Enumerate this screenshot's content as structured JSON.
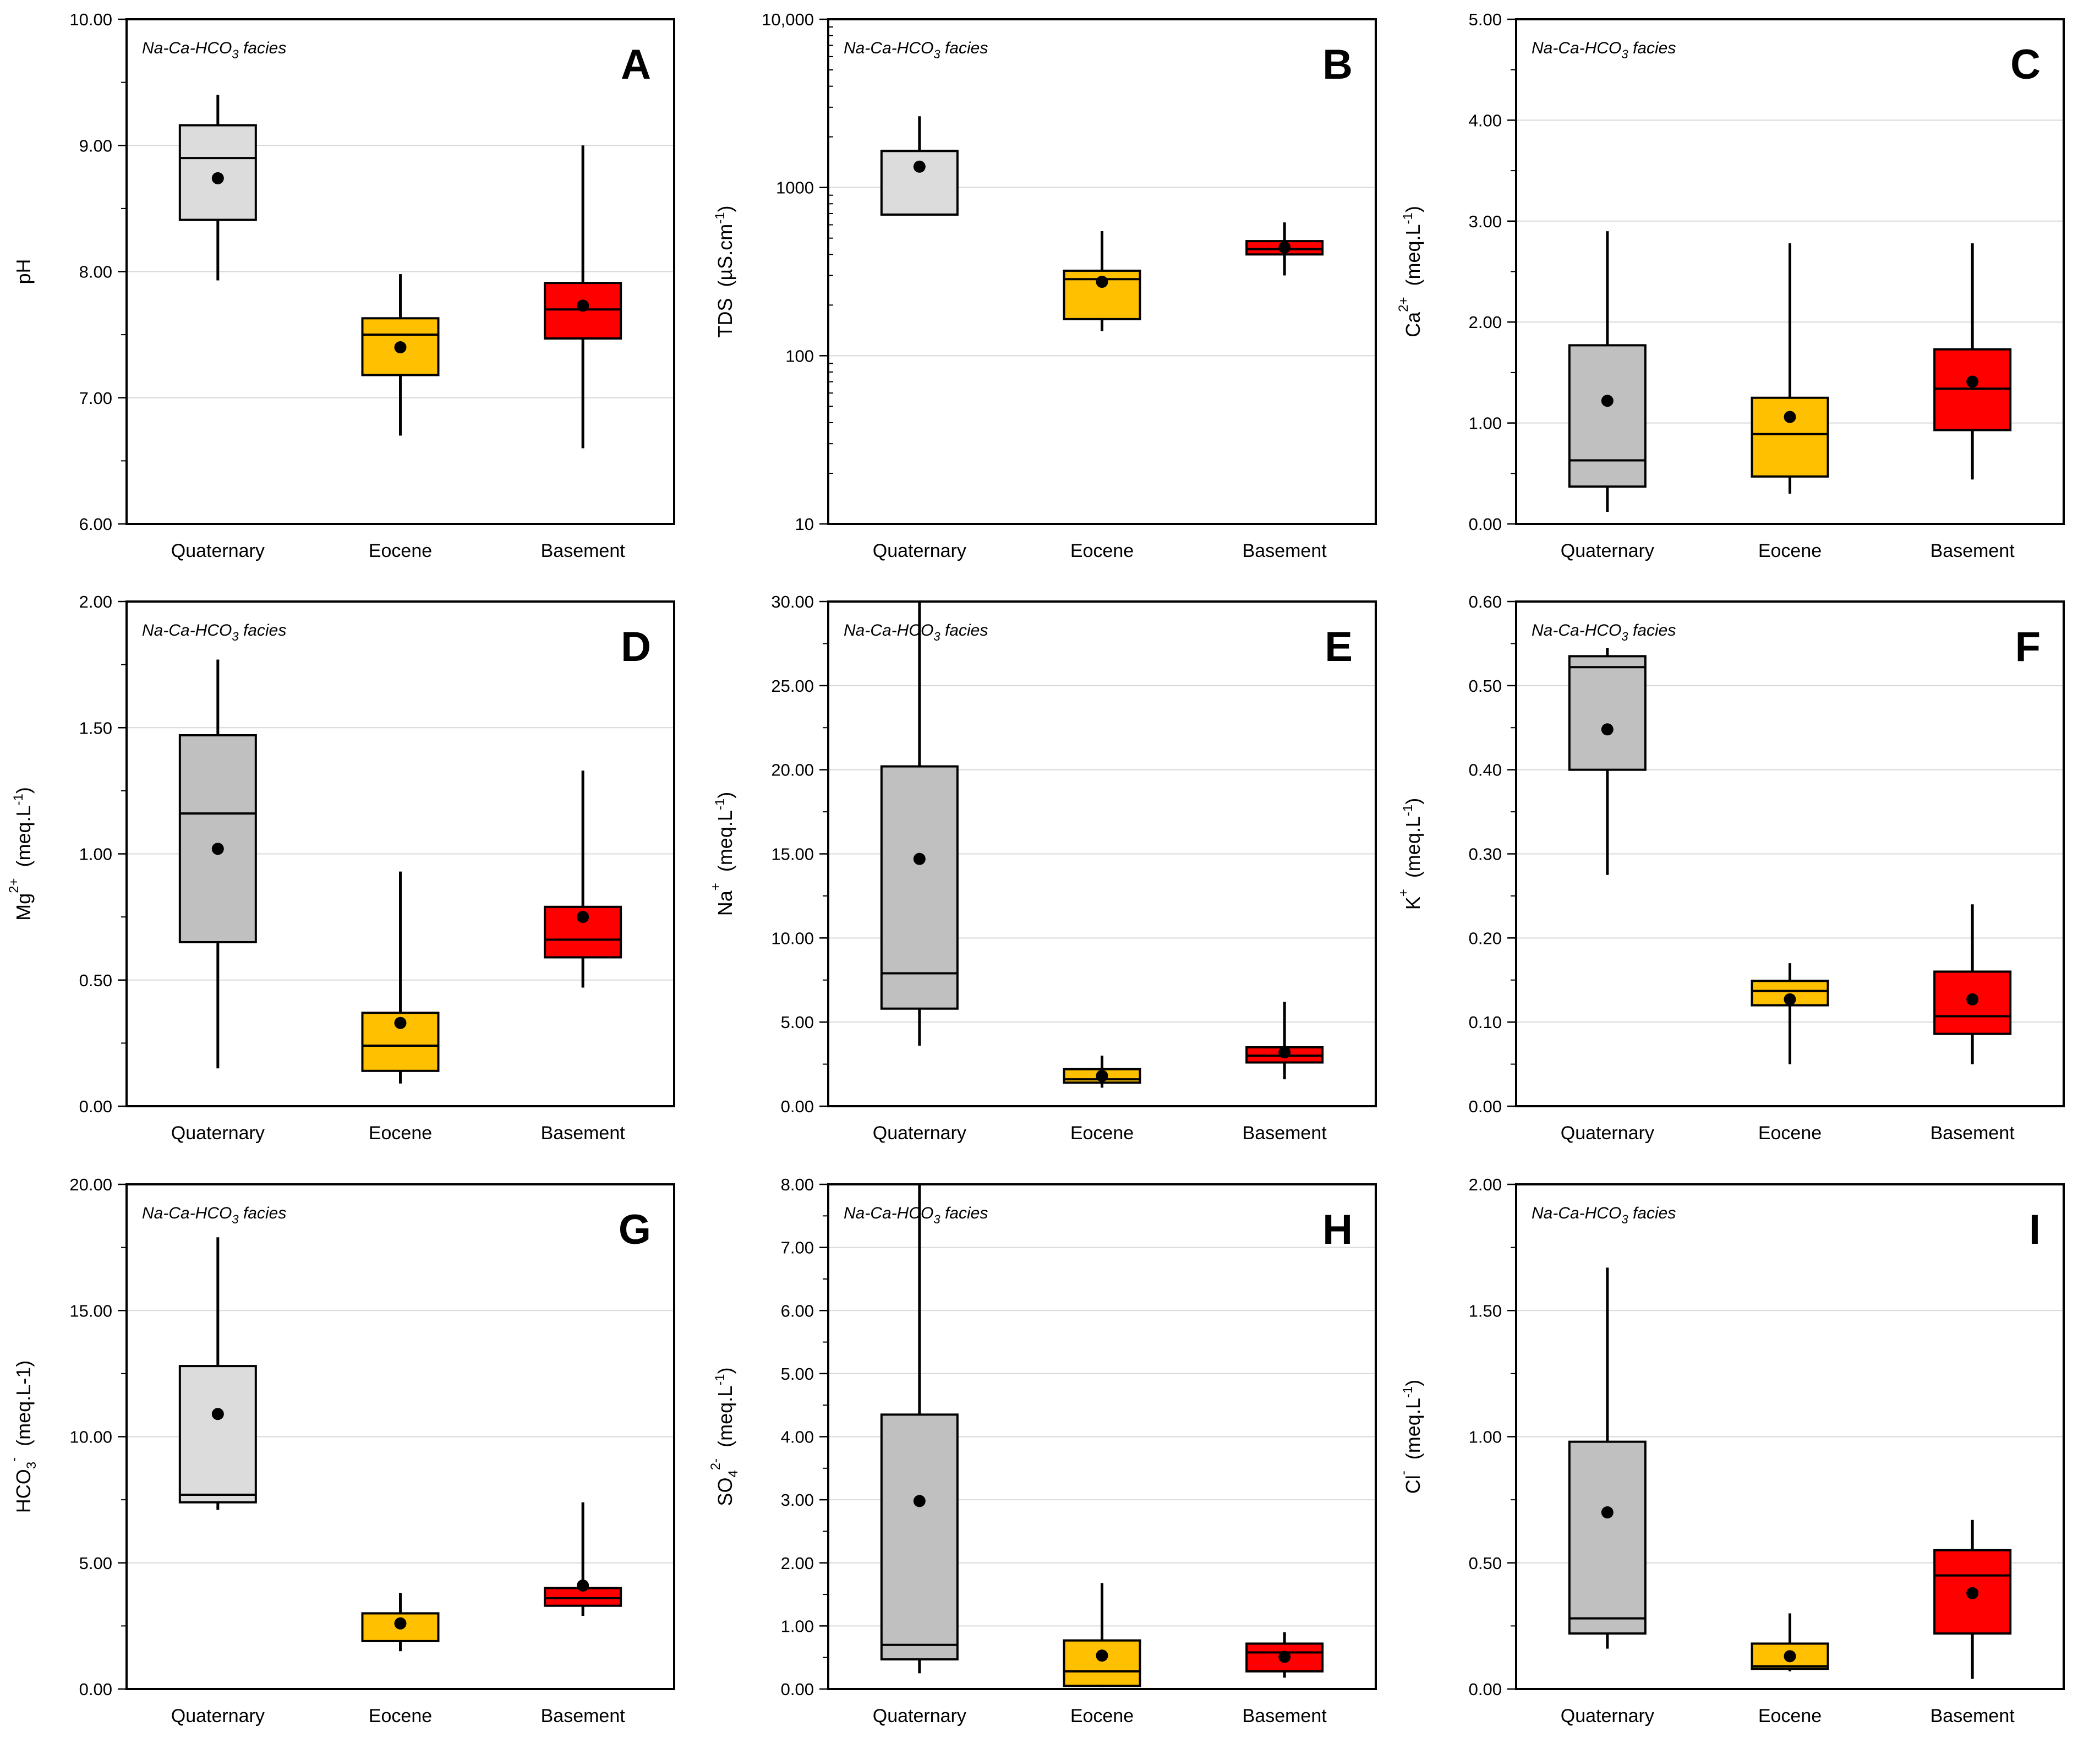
{
  "figure": {
    "facies_label": "Na-Ca-HCO3 facies",
    "facies_parts": {
      "pre": "Na-Ca-HCO",
      "sub": "3",
      "post": " facies"
    }
  },
  "chart_data": [
    {
      "type": "box",
      "panel": "A",
      "title": "A",
      "ylabel": "pH",
      "ylabel_parts": {
        "base": "pH",
        "sup": "",
        "sub": "",
        "unit": ""
      },
      "ylim": [
        6,
        10
      ],
      "yscale": "linear",
      "yticks": [
        6,
        7,
        8,
        9,
        10
      ],
      "ytick_labels": [
        "6.00",
        "7.00",
        "8.00",
        "9.00",
        "10.00"
      ],
      "categories": [
        "Quaternary",
        "Eocene",
        "Basement"
      ],
      "colors": [
        "#dcdcdc",
        "#ffc000",
        "#ff0000"
      ],
      "boxes": [
        {
          "min": 7.93,
          "q1": 8.41,
          "median": 8.9,
          "q3": 9.16,
          "max": 9.4,
          "mean": 8.74
        },
        {
          "min": 6.7,
          "q1": 7.18,
          "median": 7.5,
          "q3": 7.63,
          "max": 7.98,
          "mean": 7.4
        },
        {
          "min": 6.6,
          "q1": 7.47,
          "median": 7.7,
          "q3": 7.91,
          "max": 9.0,
          "mean": 7.73
        }
      ]
    },
    {
      "type": "box",
      "panel": "B",
      "title": "B",
      "ylabel": "TDS (µS.cm-1)",
      "ylabel_parts": {
        "base": "TDS",
        "sup": "",
        "sub": "",
        "unit": "(µS.cm",
        "unit_sup": "-1",
        "unit_end": ")"
      },
      "ylim": [
        10,
        10000
      ],
      "yscale": "log",
      "yticks": [
        10,
        100,
        1000,
        10000
      ],
      "ytick_labels": [
        "10",
        "100",
        "1000",
        "10,000"
      ],
      "categories": [
        "Quaternary",
        "Eocene",
        "Basement"
      ],
      "colors": [
        "#dcdcdc",
        "#ffc000",
        "#ff0000"
      ],
      "boxes": [
        {
          "min": 690,
          "q1": 690,
          "median": 1650,
          "q3": 1650,
          "max": 2650,
          "mean": 1330
        },
        {
          "min": 140,
          "q1": 165,
          "median": 285,
          "q3": 320,
          "max": 550,
          "mean": 275
        },
        {
          "min": 300,
          "q1": 400,
          "median": 430,
          "q3": 480,
          "max": 620,
          "mean": 440
        }
      ]
    },
    {
      "type": "box",
      "panel": "C",
      "title": "C",
      "ylabel": "Ca2+ (meq.L-1)",
      "ylabel_parts": {
        "base": "Ca",
        "sup": "2+",
        "sub": "",
        "unit": "(meq.L",
        "unit_sup": "-1",
        "unit_end": ")"
      },
      "ylim": [
        0,
        5
      ],
      "yscale": "linear",
      "yticks": [
        0,
        1,
        2,
        3,
        4,
        5
      ],
      "ytick_labels": [
        "0.00",
        "1.00",
        "2.00",
        "3.00",
        "4.00",
        "5.00"
      ],
      "categories": [
        "Quaternary",
        "Eocene",
        "Basement"
      ],
      "colors": [
        "#c0c0c0",
        "#ffc000",
        "#ff0000"
      ],
      "boxes": [
        {
          "min": 0.12,
          "q1": 0.37,
          "median": 0.63,
          "q3": 1.77,
          "max": 2.9,
          "mean": 1.22
        },
        {
          "min": 0.3,
          "q1": 0.47,
          "median": 0.89,
          "q3": 1.25,
          "max": 2.78,
          "mean": 1.06
        },
        {
          "min": 0.44,
          "q1": 0.93,
          "median": 1.34,
          "q3": 1.73,
          "max": 2.78,
          "mean": 1.41
        }
      ]
    },
    {
      "type": "box",
      "panel": "D",
      "title": "D",
      "ylabel": "Mg2+ (meq.L-1)",
      "ylabel_parts": {
        "base": "Mg",
        "sup": "2+",
        "sub": "",
        "unit": "(meq.L",
        "unit_sup": "-1",
        "unit_end": ")"
      },
      "ylim": [
        0,
        2
      ],
      "yscale": "linear",
      "yticks": [
        0,
        0.5,
        1,
        1.5,
        2
      ],
      "ytick_labels": [
        "0.00",
        "0.50",
        "1.00",
        "1.50",
        "2.00"
      ],
      "categories": [
        "Quaternary",
        "Eocene",
        "Basement"
      ],
      "colors": [
        "#c0c0c0",
        "#ffc000",
        "#ff0000"
      ],
      "boxes": [
        {
          "min": 0.15,
          "q1": 0.65,
          "median": 1.16,
          "q3": 1.47,
          "max": 1.77,
          "mean": 1.02
        },
        {
          "min": 0.09,
          "q1": 0.14,
          "median": 0.24,
          "q3": 0.37,
          "max": 0.93,
          "mean": 0.33
        },
        {
          "min": 0.47,
          "q1": 0.59,
          "median": 0.66,
          "q3": 0.79,
          "max": 1.33,
          "mean": 0.75
        }
      ]
    },
    {
      "type": "box",
      "panel": "E",
      "title": "E",
      "ylabel": "Na+ (meq.L-1)",
      "ylabel_parts": {
        "base": "Na",
        "sup": "+",
        "sub": "",
        "unit": "(meq.L",
        "unit_sup": "-1",
        "unit_end": ")"
      },
      "ylim": [
        0,
        30
      ],
      "yscale": "linear",
      "yticks": [
        0,
        5,
        10,
        15,
        20,
        25,
        30
      ],
      "ytick_labels": [
        "0.00",
        "5.00",
        "10.00",
        "15.00",
        "20.00",
        "25.00",
        "30.00"
      ],
      "categories": [
        "Quaternary",
        "Eocene",
        "Basement"
      ],
      "colors": [
        "#c0c0c0",
        "#ffc000",
        "#ff0000"
      ],
      "boxes": [
        {
          "min": 3.6,
          "q1": 5.8,
          "median": 7.9,
          "q3": 20.2,
          "max": 30.0,
          "mean": 14.7
        },
        {
          "min": 1.1,
          "q1": 1.4,
          "median": 1.6,
          "q3": 2.2,
          "max": 3.0,
          "mean": 1.8
        },
        {
          "min": 1.6,
          "q1": 2.6,
          "median": 3.0,
          "q3": 3.5,
          "max": 6.2,
          "mean": 3.2
        }
      ]
    },
    {
      "type": "box",
      "panel": "F",
      "title": "F",
      "ylabel": "K+ (meq.L-1)",
      "ylabel_parts": {
        "base": "K",
        "sup": "+",
        "sub": "",
        "unit": "(meq.L",
        "unit_sup": "-1",
        "unit_end": ")"
      },
      "ylim": [
        0,
        0.6
      ],
      "yscale": "linear",
      "yticks": [
        0,
        0.1,
        0.2,
        0.3,
        0.4,
        0.5,
        0.6
      ],
      "ytick_labels": [
        "0.00",
        "0.10",
        "0.20",
        "0.30",
        "0.40",
        "0.50",
        "0.60"
      ],
      "categories": [
        "Quaternary",
        "Eocene",
        "Basement"
      ],
      "colors": [
        "#c0c0c0",
        "#ffc000",
        "#ff0000"
      ],
      "boxes": [
        {
          "min": 0.275,
          "q1": 0.4,
          "median": 0.522,
          "q3": 0.535,
          "max": 0.545,
          "mean": 0.448
        },
        {
          "min": 0.05,
          "q1": 0.12,
          "median": 0.137,
          "q3": 0.149,
          "max": 0.17,
          "mean": 0.127
        },
        {
          "min": 0.05,
          "q1": 0.086,
          "median": 0.107,
          "q3": 0.16,
          "max": 0.24,
          "mean": 0.127
        }
      ]
    },
    {
      "type": "box",
      "panel": "G",
      "title": "G",
      "ylabel": "HCO3- (meq.L-1)",
      "ylabel_parts": {
        "base": "HCO",
        "sup": "-",
        "sub": "3",
        "unit": "(meq.L-1)",
        "unit_sup": "",
        "unit_end": ""
      },
      "ylim": [
        0,
        20
      ],
      "yscale": "linear",
      "yticks": [
        0,
        5,
        10,
        15,
        20
      ],
      "ytick_labels": [
        "0.00",
        "5.00",
        "10.00",
        "15.00",
        "20.00"
      ],
      "categories": [
        "Quaternary",
        "Eocene",
        "Basement"
      ],
      "colors": [
        "#dcdcdc",
        "#ffc000",
        "#ff0000"
      ],
      "boxes": [
        {
          "min": 7.1,
          "q1": 7.4,
          "median": 7.7,
          "q3": 12.8,
          "max": 17.9,
          "mean": 10.9
        },
        {
          "min": 1.5,
          "q1": 1.9,
          "median": 3.0,
          "q3": 3.0,
          "max": 3.8,
          "mean": 2.6
        },
        {
          "min": 2.9,
          "q1": 3.3,
          "median": 3.6,
          "q3": 4.0,
          "max": 7.4,
          "mean": 4.1
        }
      ]
    },
    {
      "type": "box",
      "panel": "H",
      "title": "H",
      "ylabel": "SO42- (meq.L-1)",
      "ylabel_parts": {
        "base": "SO",
        "sup": "2-",
        "sub": "4",
        "unit": "(meq.L",
        "unit_sup": "-1",
        "unit_end": ")"
      },
      "ylim": [
        0,
        8
      ],
      "yscale": "linear",
      "yticks": [
        0,
        1,
        2,
        3,
        4,
        5,
        6,
        7,
        8
      ],
      "ytick_labels": [
        "0.00",
        "1.00",
        "2.00",
        "3.00",
        "4.00",
        "5.00",
        "6.00",
        "7.00",
        "8.00"
      ],
      "categories": [
        "Quaternary",
        "Eocene",
        "Basement"
      ],
      "colors": [
        "#c0c0c0",
        "#ffc000",
        "#ff0000"
      ],
      "boxes": [
        {
          "min": 0.25,
          "q1": 0.47,
          "median": 0.7,
          "q3": 4.35,
          "max": 8.0,
          "mean": 2.98
        },
        {
          "min": 0.03,
          "q1": 0.05,
          "median": 0.28,
          "q3": 0.77,
          "max": 1.68,
          "mean": 0.53
        },
        {
          "min": 0.18,
          "q1": 0.28,
          "median": 0.58,
          "q3": 0.72,
          "max": 0.9,
          "mean": 0.51
        }
      ]
    },
    {
      "type": "box",
      "panel": "I",
      "title": "I",
      "ylabel": "Cl- (meq.L-1)",
      "ylabel_parts": {
        "base": "Cl",
        "sup": "-",
        "sub": "",
        "unit": "(meq.L",
        "unit_sup": "-1",
        "unit_end": ")"
      },
      "ylim": [
        0,
        2
      ],
      "yscale": "linear",
      "yticks": [
        0,
        0.5,
        1,
        1.5,
        2
      ],
      "ytick_labels": [
        "0.00",
        "0.50",
        "1.00",
        "1.50",
        "2.00"
      ],
      "categories": [
        "Quaternary",
        "Eocene",
        "Basement"
      ],
      "colors": [
        "#c0c0c0",
        "#ffc000",
        "#ff0000"
      ],
      "boxes": [
        {
          "min": 0.16,
          "q1": 0.22,
          "median": 0.28,
          "q3": 0.98,
          "max": 1.67,
          "mean": 0.7
        },
        {
          "min": 0.07,
          "q1": 0.08,
          "median": 0.09,
          "q3": 0.18,
          "max": 0.3,
          "mean": 0.13
        },
        {
          "min": 0.04,
          "q1": 0.22,
          "median": 0.45,
          "q3": 0.55,
          "max": 0.67,
          "mean": 0.38
        }
      ]
    }
  ]
}
